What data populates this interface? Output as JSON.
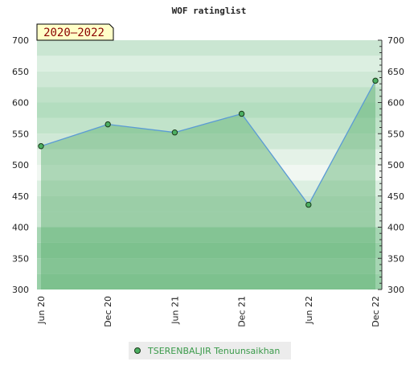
{
  "chart_data": {
    "type": "area",
    "title": "WOF ratinglist",
    "period_badge": "2020–2022",
    "x_labels": [
      "Jun 20",
      "Dec 20",
      "Jun 21",
      "Dec 21",
      "Jun 22",
      "Dec 22"
    ],
    "ylim": [
      300,
      700
    ],
    "y_ticks": [
      300,
      350,
      400,
      450,
      500,
      550,
      600,
      650,
      700
    ],
    "y_ticks_right": [
      300,
      350,
      400,
      450,
      500,
      550,
      600,
      650,
      700
    ],
    "series": [
      {
        "name": "TSERENBALJIR Tenuunsaikhan",
        "points": [
          {
            "x": "Jun 20",
            "y": 530
          },
          {
            "x": "Dec 20",
            "y": 565
          },
          {
            "x": "Jun 21",
            "y": 552
          },
          {
            "x": "Dec 21",
            "y": 582
          },
          {
            "x": "Jun 22",
            "y": 436
          },
          {
            "x": "Dec 22",
            "y": 635
          }
        ]
      }
    ],
    "legend_position": "bottom",
    "colors": {
      "line": "#5b9bd5",
      "area": "#5aaf6e",
      "marker_fill": "#4caf62",
      "badge_bg": "#ffffc8",
      "legend_text": "#3a9a4a",
      "band_light": "#f1f7f2",
      "band_mid": "#cfe8d6",
      "band_dark": "#99d0a8"
    }
  }
}
